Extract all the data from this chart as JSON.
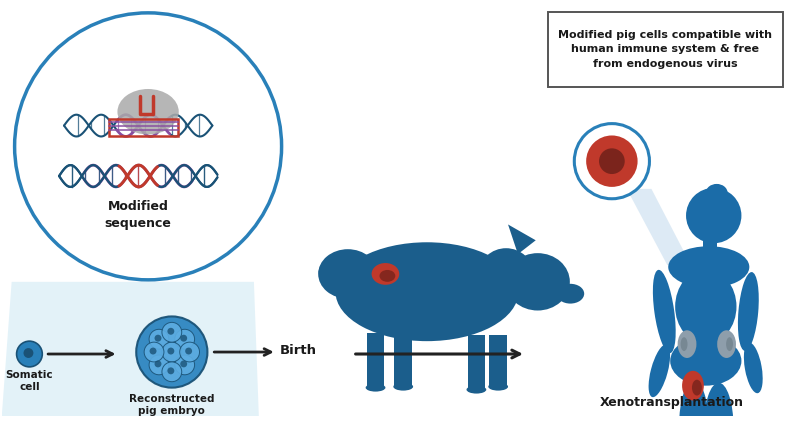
{
  "bg_color": "#ffffff",
  "blue_dark": "#1a5276",
  "blue_body": "#1b6ca8",
  "blue_pig": "#1b5e8c",
  "blue_circle_outline": "#2980b9",
  "blue_cell": "#2980b9",
  "blue_embryo": "#2e86c1",
  "blue_embryo_inner": "#5dade2",
  "red_color": "#c0392b",
  "red_dark": "#7b241c",
  "gray_kidney": "#8e9eab",
  "gray_blob": "#b0b0b0",
  "purple_color": "#884ea0",
  "text_color": "#1a1a1a",
  "arrow_color": "#222222",
  "box_outline": "#555555",
  "beam_color": "#cce0f0",
  "label_somatic": "Somatic\ncell",
  "label_embryo": "Reconstructed\npig embryo",
  "label_birth": "Birth",
  "label_xeno": "Xenotransplantation",
  "label_modified": "Modified\nsequence",
  "box_text": "Modified pig cells compatible with\nhuman immune system & free\nfrom endogenous virus",
  "dna_blue": "#1a5276",
  "dna_purple": "#884ea0",
  "dna_red": "#c0392b"
}
